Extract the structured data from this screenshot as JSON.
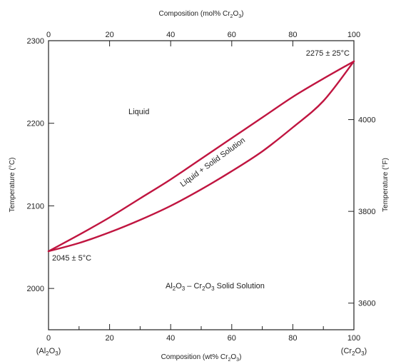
{
  "chart_data": {
    "type": "phase-diagram",
    "top_axis": {
      "label_prefix": "Composition (mol% Cr",
      "label_sub": "2",
      "label_mid": "O",
      "label_sub2": "3",
      "label_suffix": ")",
      "ticks": [
        0,
        20,
        40,
        60,
        80,
        100
      ]
    },
    "bottom_axis": {
      "label_prefix": "Composition (wt% Cr",
      "label_sub": "2",
      "label_mid": "O",
      "label_sub2": "3",
      "label_suffix": ")",
      "ticks": [
        0,
        20,
        40,
        60,
        80,
        100
      ],
      "minor_ticks": [
        10,
        30,
        50,
        70,
        90
      ],
      "xlim": [
        0,
        100
      ]
    },
    "left_axis": {
      "label": "Temperature (°C)",
      "ticks": [
        2000,
        2100,
        2200,
        2300
      ],
      "ylim": [
        1950,
        2300
      ]
    },
    "right_axis": {
      "label": "Temperature (°F)",
      "ticks": [
        3600,
        3800,
        4000
      ]
    },
    "endpoints": {
      "left_lines": [
        "(Al",
        "2",
        "O",
        "3",
        ")"
      ],
      "right_lines": [
        "(Cr",
        "2",
        "O",
        "3",
        ")"
      ]
    },
    "liquidus": [
      [
        0,
        2045
      ],
      [
        10,
        2065
      ],
      [
        20,
        2086
      ],
      [
        30,
        2109
      ],
      [
        40,
        2132
      ],
      [
        50,
        2157
      ],
      [
        60,
        2182
      ],
      [
        70,
        2207
      ],
      [
        80,
        2232
      ],
      [
        90,
        2254
      ],
      [
        100,
        2275
      ]
    ],
    "solidus": [
      [
        0,
        2045
      ],
      [
        10,
        2055
      ],
      [
        20,
        2068
      ],
      [
        30,
        2083
      ],
      [
        40,
        2100
      ],
      [
        50,
        2120
      ],
      [
        60,
        2142
      ],
      [
        70,
        2166
      ],
      [
        80,
        2195
      ],
      [
        90,
        2227
      ],
      [
        100,
        2275
      ]
    ],
    "annotations": {
      "liquid": "Liquid",
      "two_phase": "Liquid + Solid Solution",
      "solid_a": "Al",
      "solid_b": "O",
      "solid_c": " – Cr",
      "solid_d": "O",
      "solid_e": " Solid Solution",
      "sub2": "2",
      "sub3": "3",
      "melt_low": "2045 ± 5°C",
      "melt_high": "2275 ± 25°C"
    }
  }
}
